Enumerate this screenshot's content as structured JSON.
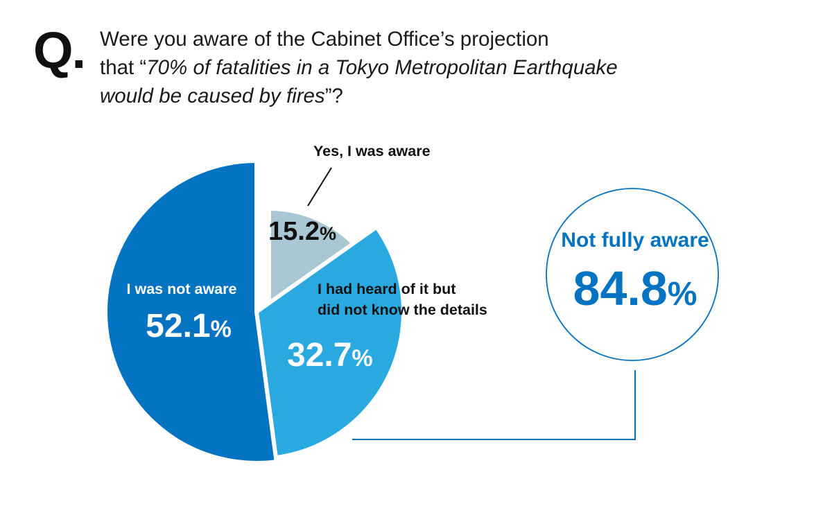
{
  "question": {
    "marker": "Q.",
    "line1": "Were you aware of the Cabinet Office’s projection",
    "line2_prefix": "that “",
    "line2_italic": "70% of fatalities in a Tokyo Metropolitan Earthquake",
    "line3_italic": "would be caused by fires",
    "line3_suffix": "”?"
  },
  "chart_data": {
    "type": "pie",
    "unit": "%",
    "slices": [
      {
        "label": "Yes, I was aware",
        "value": 15.2,
        "value_text": "15.2",
        "color": "#a9c7d2",
        "label_color": "#111111",
        "exploded": true
      },
      {
        "label_lines": [
          "I had heard of it but",
          "did not know the details"
        ],
        "value": 32.7,
        "value_text": "32.7",
        "color": "#2aa9e0",
        "label_color": "#ffffff"
      },
      {
        "label": "I was not aware",
        "value": 52.1,
        "value_text": "52.1",
        "color": "#0473c1",
        "label_color": "#ffffff"
      }
    ]
  },
  "callout": {
    "title": "Not fully aware",
    "value_text": "84.8",
    "unit": "%",
    "color": "#0473c1"
  },
  "colors": {
    "text": "#111111",
    "accent": "#0473c1"
  }
}
